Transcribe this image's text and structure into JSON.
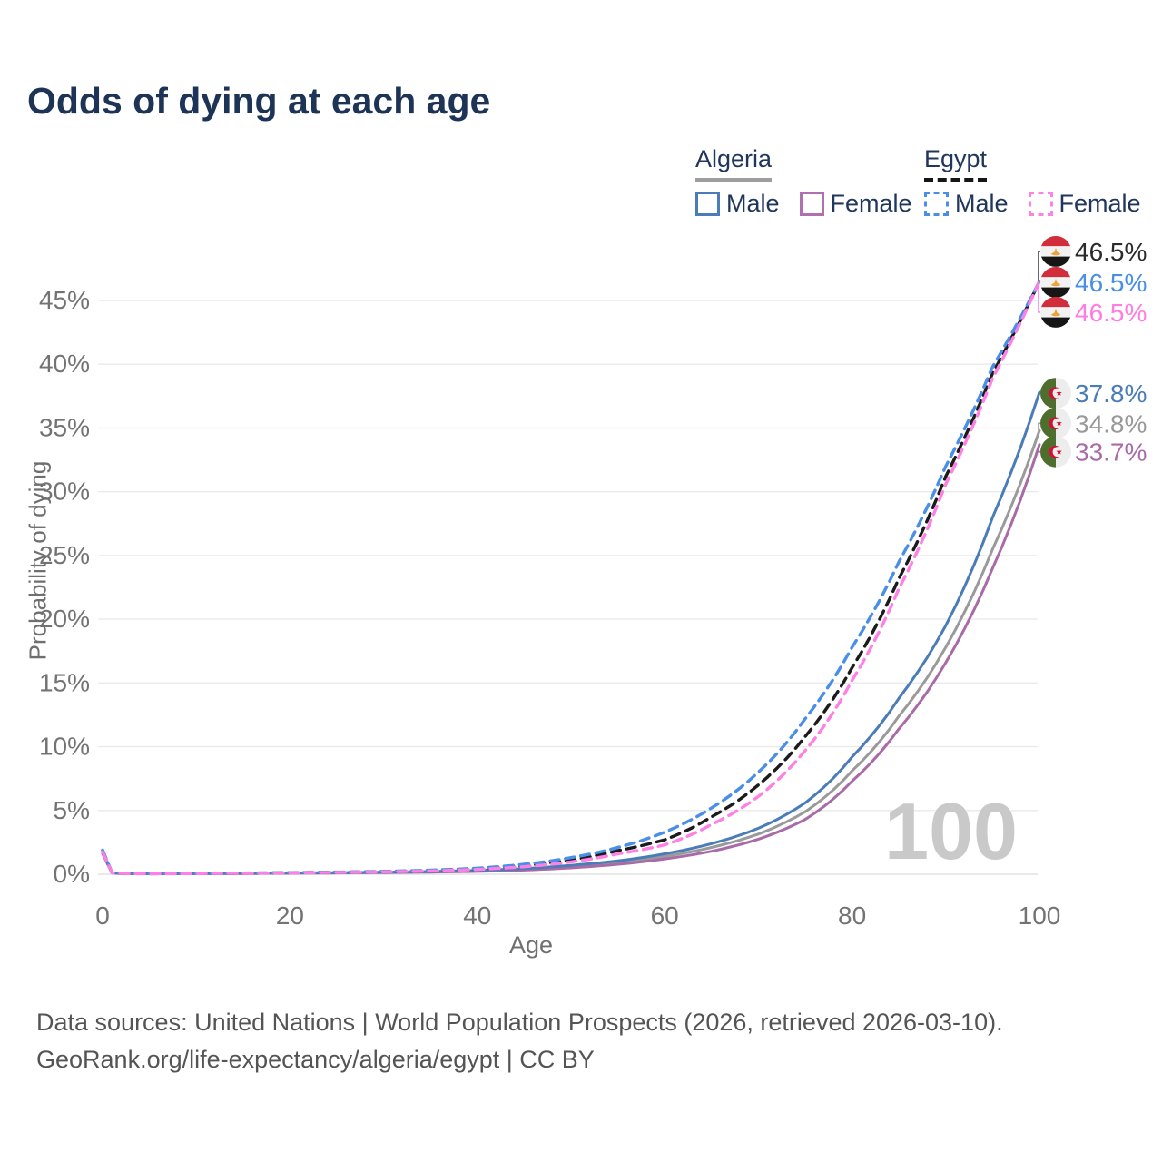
{
  "title": "Odds of dying at each age",
  "legend": {
    "algeria": {
      "label": "Algeria",
      "male_label": "Male",
      "female_label": "Female",
      "male_color": "#4a7cb8",
      "female_color": "#b06fb0",
      "underline_color": "#9e9e9e"
    },
    "egypt": {
      "label": "Egypt",
      "male_label": "Male",
      "female_label": "Female",
      "male_color": "#4a8fe7",
      "female_color": "#ff80e5",
      "underline_color": "#161616"
    }
  },
  "axes": {
    "ylabel": "Probability of dying",
    "xlabel": "Age"
  },
  "watermark": "100",
  "footer": {
    "line1": "Data sources: United Nations | World Population Prospects (2026, retrieved 2026-03-10).",
    "line2": "GeoRank.org/life-expectancy/algeria/egypt | CC BY"
  },
  "colors": {
    "title_text": "#1d3456",
    "legend_text": "#20365c",
    "grid": "#eaeaea",
    "zero_line": "#e2e2e2",
    "tick_text": "#737373",
    "watermark": "#c9c9c9",
    "footer_text": "#545454"
  },
  "chart_data": {
    "type": "line",
    "title": "Odds of dying at each age",
    "xlabel": "Age",
    "ylabel": "Probability of dying",
    "xlim": [
      0,
      100
    ],
    "ylim_percent": [
      0,
      46.5
    ],
    "xticks": [
      0,
      20,
      40,
      60,
      80,
      100
    ],
    "yticks_percent": [
      0,
      5,
      10,
      15,
      20,
      25,
      30,
      35,
      40,
      45
    ],
    "grid": true,
    "legend_position": "top-right",
    "x_ages": [
      0,
      1,
      2,
      5,
      10,
      15,
      20,
      25,
      30,
      35,
      40,
      45,
      50,
      55,
      60,
      65,
      70,
      75,
      80,
      85,
      90,
      95,
      100
    ],
    "series": [
      {
        "name": "Algeria Total",
        "country": "Algeria",
        "sex": "Total",
        "color": "#9a9a9a",
        "dashed": false,
        "values_percent": [
          1.7,
          0.11,
          0.055,
          0.038,
          0.047,
          0.062,
          0.09,
          0.115,
          0.15,
          0.19,
          0.26,
          0.39,
          0.6,
          0.92,
          1.4,
          2.1,
          3.15,
          4.9,
          8.1,
          12.4,
          17.8,
          25.5,
          34.8
        ],
        "end_label": "34.8%",
        "end_label_color": "#999999",
        "label_dy": -8,
        "flag": "algeria"
      },
      {
        "name": "Algeria Female",
        "country": "Algeria",
        "sex": "Female",
        "color": "#a86ba8",
        "dashed": false,
        "values_percent": [
          1.6,
          0.1,
          0.05,
          0.035,
          0.043,
          0.055,
          0.08,
          0.1,
          0.13,
          0.165,
          0.22,
          0.33,
          0.5,
          0.78,
          1.2,
          1.8,
          2.75,
          4.3,
          7.3,
          11.4,
          16.6,
          24.0,
          33.7
        ],
        "end_label": "33.7%",
        "end_label_color": "#a96ba8",
        "label_dy": 8,
        "flag": "algeria"
      },
      {
        "name": "Algeria Male",
        "country": "Algeria",
        "sex": "Male",
        "color": "#4a7cb8",
        "dashed": false,
        "values_percent": [
          1.8,
          0.12,
          0.06,
          0.04,
          0.05,
          0.07,
          0.1,
          0.13,
          0.17,
          0.22,
          0.3,
          0.45,
          0.7,
          1.05,
          1.6,
          2.4,
          3.6,
          5.6,
          9.2,
          13.8,
          19.5,
          28.0,
          37.8
        ],
        "end_label": "37.8%",
        "end_label_color": "#4a7cb8",
        "label_dy": 1,
        "flag": "algeria"
      },
      {
        "name": "Egypt Total",
        "country": "Egypt",
        "sex": "Total",
        "color": "#1b1b1b",
        "dashed": true,
        "values_percent": [
          1.85,
          0.13,
          0.065,
          0.045,
          0.055,
          0.08,
          0.12,
          0.155,
          0.21,
          0.29,
          0.43,
          0.68,
          1.12,
          1.85,
          2.7,
          4.5,
          7.0,
          10.8,
          16.2,
          23.2,
          31.2,
          39.3,
          46.5
        ],
        "end_label": "46.5%",
        "end_label_color": "#2b2b2b",
        "label_dy": -33,
        "flag": "egypt"
      },
      {
        "name": "Egypt Male",
        "country": "Egypt",
        "sex": "Male",
        "color": "#4a8fe7",
        "dashed": true,
        "values_percent": [
          1.9,
          0.14,
          0.07,
          0.05,
          0.06,
          0.09,
          0.13,
          0.17,
          0.23,
          0.32,
          0.48,
          0.78,
          1.3,
          2.1,
          3.3,
          5.2,
          8.0,
          12.2,
          17.8,
          24.5,
          32.0,
          39.8,
          46.5
        ],
        "end_label": "46.5%",
        "end_label_color": "#4a90e2",
        "label_dy": 1,
        "flag": "egypt"
      },
      {
        "name": "Egypt Female",
        "country": "Egypt",
        "sex": "Female",
        "color": "#ff80e5",
        "dashed": true,
        "values_percent": [
          1.75,
          0.12,
          0.06,
          0.04,
          0.05,
          0.07,
          0.11,
          0.14,
          0.19,
          0.26,
          0.38,
          0.59,
          0.97,
          1.6,
          2.3,
          3.9,
          6.1,
          9.7,
          15.2,
          22.4,
          30.6,
          38.9,
          46.5
        ],
        "end_label": "46.5%",
        "end_label_color": "#ff7ce0",
        "label_dy": 34,
        "flag": "egypt"
      }
    ],
    "watermark": "100"
  }
}
